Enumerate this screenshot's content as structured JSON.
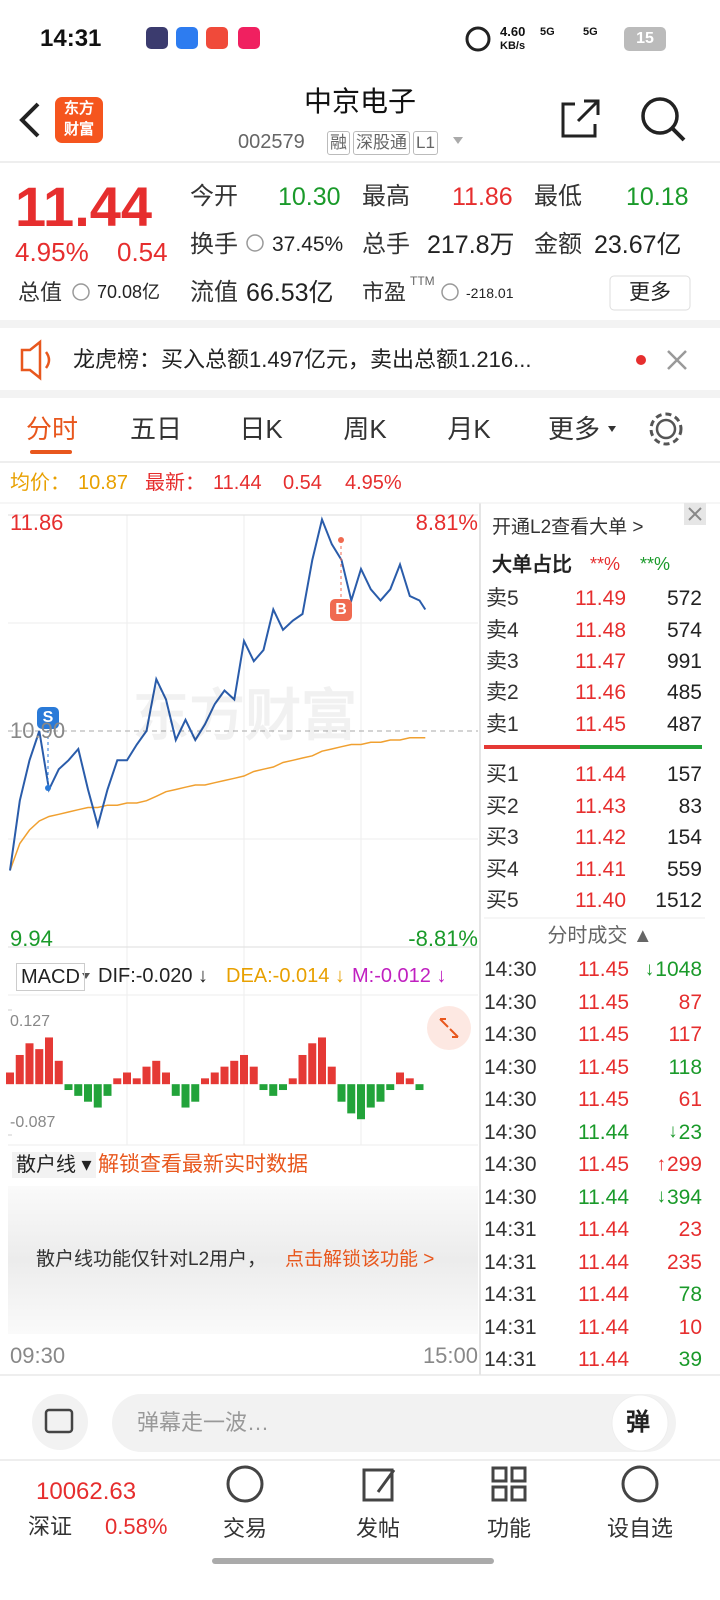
{
  "status": {
    "time": "14:31",
    "speed": "4.60",
    "speed_unit": "KB/s",
    "net1": "5G",
    "net2": "5G",
    "battery": "15"
  },
  "header": {
    "logo": [
      "东方",
      "财富"
    ],
    "title": "中京电子",
    "code": "002579",
    "tags": [
      "融",
      "深股通",
      "L1"
    ]
  },
  "quote": {
    "price": "11.44",
    "percent": "4.95%",
    "change": "0.54",
    "color": "#e62e2e",
    "fields": [
      {
        "label": "今开",
        "value": "10.30",
        "color": "#1a9a2a"
      },
      {
        "label": "最高",
        "value": "11.86",
        "color": "#e62e2e"
      },
      {
        "label": "最低",
        "value": "10.18",
        "color": "#1a9a2a"
      },
      {
        "label": "换手",
        "value": "37.45%",
        "color": "#222"
      },
      {
        "label": "总手",
        "value": "217.8万",
        "color": "#222"
      },
      {
        "label": "金额",
        "value": "23.67亿",
        "color": "#222"
      },
      {
        "label": "总值",
        "value": "70.08亿",
        "color": "#222"
      },
      {
        "label": "流值",
        "value": "66.53亿",
        "color": "#222"
      },
      {
        "label": "市盈",
        "sup": "TTM",
        "value": "-218.01",
        "color": "#222"
      }
    ],
    "more": "更多"
  },
  "notice": {
    "text": "龙虎榜：买入总额1.497亿元，卖出总额1.216..."
  },
  "tabs": {
    "items": [
      "分时",
      "五日",
      "日K",
      "周K",
      "月K",
      "更多"
    ],
    "active": 0
  },
  "summary": {
    "avg_label": "均价：",
    "avg": "10.87",
    "last_label": "最新：",
    "last": "11.44",
    "change": "0.54",
    "percent": "4.95%"
  },
  "chart_data": [
    {
      "type": "line",
      "xlim": [
        0,
        240
      ],
      "ylim": [
        9.94,
        11.86
      ],
      "yticks": [
        9.94,
        {
          "value": 10.9,
          "label": "10.90"
        },
        11.86
      ],
      "y2lim": [
        -8.81,
        8.81
      ],
      "y2ticks": [
        {
          "value": 8.81,
          "label": "8.81%"
        },
        {
          "value": -8.81,
          "label": "-8.81%"
        }
      ],
      "x_labels": [
        "09:30",
        "15:00"
      ],
      "annotations": [
        "S",
        "B"
      ],
      "watermark": "东方财富",
      "x": [
        0,
        5,
        10,
        15,
        20,
        25,
        30,
        35,
        40,
        45,
        50,
        55,
        60,
        65,
        70,
        75,
        80,
        85,
        90,
        95,
        100,
        105,
        110,
        115,
        120,
        125,
        130,
        135,
        140,
        145,
        150,
        155,
        160,
        165,
        170,
        175,
        180,
        185,
        190,
        195,
        200,
        205,
        210,
        213
      ],
      "series": [
        {
          "name": "price",
          "color": "#2a5caa",
          "values": [
            10.28,
            10.59,
            10.77,
            10.9,
            10.64,
            10.73,
            10.77,
            10.82,
            10.64,
            10.48,
            10.64,
            10.77,
            10.77,
            10.84,
            10.9,
            11.13,
            11.04,
            10.86,
            10.95,
            10.86,
            10.93,
            11.02,
            11.08,
            11.04,
            11.3,
            11.21,
            11.26,
            11.44,
            11.35,
            11.39,
            11.42,
            11.66,
            11.84,
            11.73,
            11.66,
            11.48,
            11.62,
            11.53,
            11.48,
            11.53,
            11.64,
            11.5,
            11.48,
            11.44
          ]
        },
        {
          "name": "avg",
          "color": "#f0a030",
          "values": [
            10.28,
            10.4,
            10.46,
            10.5,
            10.52,
            10.53,
            10.54,
            10.55,
            10.56,
            10.56,
            10.57,
            10.57,
            10.58,
            10.58,
            10.59,
            10.61,
            10.63,
            10.64,
            10.65,
            10.66,
            10.66,
            10.67,
            10.68,
            10.69,
            10.7,
            10.72,
            10.73,
            10.74,
            10.76,
            10.77,
            10.78,
            10.79,
            10.81,
            10.82,
            10.83,
            10.84,
            10.84,
            10.85,
            10.85,
            10.86,
            10.86,
            10.87,
            10.87,
            10.87
          ]
        }
      ]
    },
    {
      "type": "bar",
      "title": "MACD",
      "labels": [
        {
          "text": "DIF:-0.020 ↓",
          "color": "#222"
        },
        {
          "text": "DEA:-0.014 ↓",
          "color": "#e8a000"
        },
        {
          "text": "M:-0.012 ↓",
          "color": "#c020c0"
        }
      ],
      "xlim": [
        0,
        240
      ],
      "ylim": [
        -0.087,
        0.127
      ],
      "yticks": [
        -0.087,
        0.127
      ],
      "up_color": "#e53935",
      "down_color": "#22a33a",
      "x": [
        0,
        5,
        10,
        15,
        20,
        25,
        30,
        35,
        40,
        45,
        50,
        55,
        60,
        65,
        70,
        75,
        80,
        85,
        90,
        95,
        100,
        105,
        110,
        115,
        120,
        125,
        130,
        135,
        140,
        145,
        150,
        155,
        160,
        165,
        170,
        175,
        180,
        185,
        190,
        195,
        200,
        205,
        210
      ],
      "values": [
        0.02,
        0.05,
        0.07,
        0.06,
        0.08,
        0.04,
        -0.01,
        -0.02,
        -0.03,
        -0.04,
        -0.02,
        0.01,
        0.02,
        0.01,
        0.03,
        0.04,
        0.02,
        -0.02,
        -0.04,
        -0.03,
        0.01,
        0.02,
        0.03,
        0.04,
        0.05,
        0.03,
        -0.01,
        -0.02,
        -0.01,
        0.01,
        0.05,
        0.07,
        0.08,
        0.03,
        -0.03,
        -0.05,
        -0.06,
        -0.04,
        -0.03,
        -0.01,
        0.02,
        0.01,
        -0.01
      ]
    }
  ],
  "retail": {
    "label": "散户线 ▾",
    "unlock": "解锁查看最新实时数据",
    "message": "散户线功能仅针对L2用户，",
    "link": "点击解锁该功能 >"
  },
  "orderbook": {
    "title": "开通L2查看大单 >",
    "ratio_label": "大单占比",
    "ratio_buy": "**%",
    "ratio_sell": "**%",
    "sells": [
      [
        "卖5",
        "11.49",
        "572"
      ],
      [
        "卖4",
        "11.48",
        "574"
      ],
      [
        "卖3",
        "11.47",
        "991"
      ],
      [
        "卖2",
        "11.46",
        "485"
      ],
      [
        "卖1",
        "11.45",
        "487"
      ]
    ],
    "buys": [
      [
        "买1",
        "11.44",
        "157"
      ],
      [
        "买2",
        "11.43",
        "83"
      ],
      [
        "买3",
        "11.42",
        "154"
      ],
      [
        "买4",
        "11.41",
        "559"
      ],
      [
        "买5",
        "11.40",
        "1512"
      ]
    ]
  },
  "trades": {
    "title": "分时成交 ▲",
    "rows": [
      {
        "time": "14:30",
        "price": "11.45",
        "arrow": "↓",
        "volume": "1048",
        "price_color": "#e62e2e",
        "volume_color": "#1a9a2a"
      },
      {
        "time": "14:30",
        "price": "11.45",
        "volume": "87",
        "price_color": "#e62e2e",
        "volume_color": "#e62e2e"
      },
      {
        "time": "14:30",
        "price": "11.45",
        "volume": "117",
        "price_color": "#e62e2e",
        "volume_color": "#e62e2e"
      },
      {
        "time": "14:30",
        "price": "11.45",
        "volume": "118",
        "price_color": "#e62e2e",
        "volume_color": "#1a9a2a"
      },
      {
        "time": "14:30",
        "price": "11.45",
        "volume": "61",
        "price_color": "#e62e2e",
        "volume_color": "#e62e2e"
      },
      {
        "time": "14:30",
        "price": "11.44",
        "arrow": "↓",
        "volume": "23",
        "price_color": "#1a9a2a",
        "volume_color": "#1a9a2a"
      },
      {
        "time": "14:30",
        "price": "11.45",
        "arrow": "↑",
        "volume": "299",
        "price_color": "#e62e2e",
        "volume_color": "#e62e2e"
      },
      {
        "time": "14:30",
        "price": "11.44",
        "arrow": "↓",
        "volume": "394",
        "price_color": "#1a9a2a",
        "volume_color": "#1a9a2a"
      },
      {
        "time": "14:31",
        "price": "11.44",
        "volume": "23",
        "price_color": "#e62e2e",
        "volume_color": "#e62e2e"
      },
      {
        "time": "14:31",
        "price": "11.44",
        "volume": "235",
        "price_color": "#e62e2e",
        "volume_color": "#e62e2e"
      },
      {
        "time": "14:31",
        "price": "11.44",
        "volume": "78",
        "price_color": "#e62e2e",
        "volume_color": "#1a9a2a"
      },
      {
        "time": "14:31",
        "price": "11.44",
        "volume": "10",
        "price_color": "#e62e2e",
        "volume_color": "#e62e2e"
      },
      {
        "time": "14:31",
        "price": "11.44",
        "volume": "39",
        "price_color": "#e62e2e",
        "volume_color": "#1a9a2a"
      }
    ]
  },
  "comment": {
    "placeholder": "弹幕走一波…",
    "button": "弹"
  },
  "nav": {
    "index_value": "10062.63",
    "index_name": "深证",
    "index_change": "0.58%",
    "items": [
      "交易",
      "发帖",
      "功能",
      "设自选"
    ]
  }
}
